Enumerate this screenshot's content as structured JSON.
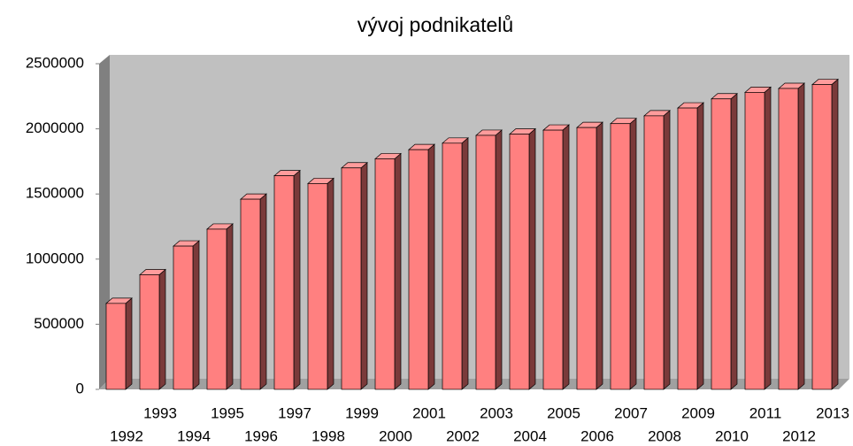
{
  "chart_data": {
    "type": "bar",
    "title": "vývoj podnikatelů",
    "categories": [
      "1992",
      "1993",
      "1994",
      "1995",
      "1996",
      "1997",
      "1998",
      "1999",
      "2000",
      "2001",
      "2002",
      "2003",
      "2004",
      "2005",
      "2006",
      "2007",
      "2008",
      "2009",
      "2010",
      "2011",
      "2012",
      "2013"
    ],
    "values": [
      660000,
      880000,
      1100000,
      1230000,
      1460000,
      1640000,
      1580000,
      1700000,
      1770000,
      1840000,
      1890000,
      1950000,
      1960000,
      1990000,
      2010000,
      2040000,
      2100000,
      2160000,
      2230000,
      2280000,
      2310000,
      2340000
    ],
    "color": "#ff8080",
    "ylim": [
      0,
      2500000
    ],
    "yticks": [
      0,
      500000,
      1000000,
      1500000,
      2000000,
      2500000
    ],
    "grid": false
  }
}
